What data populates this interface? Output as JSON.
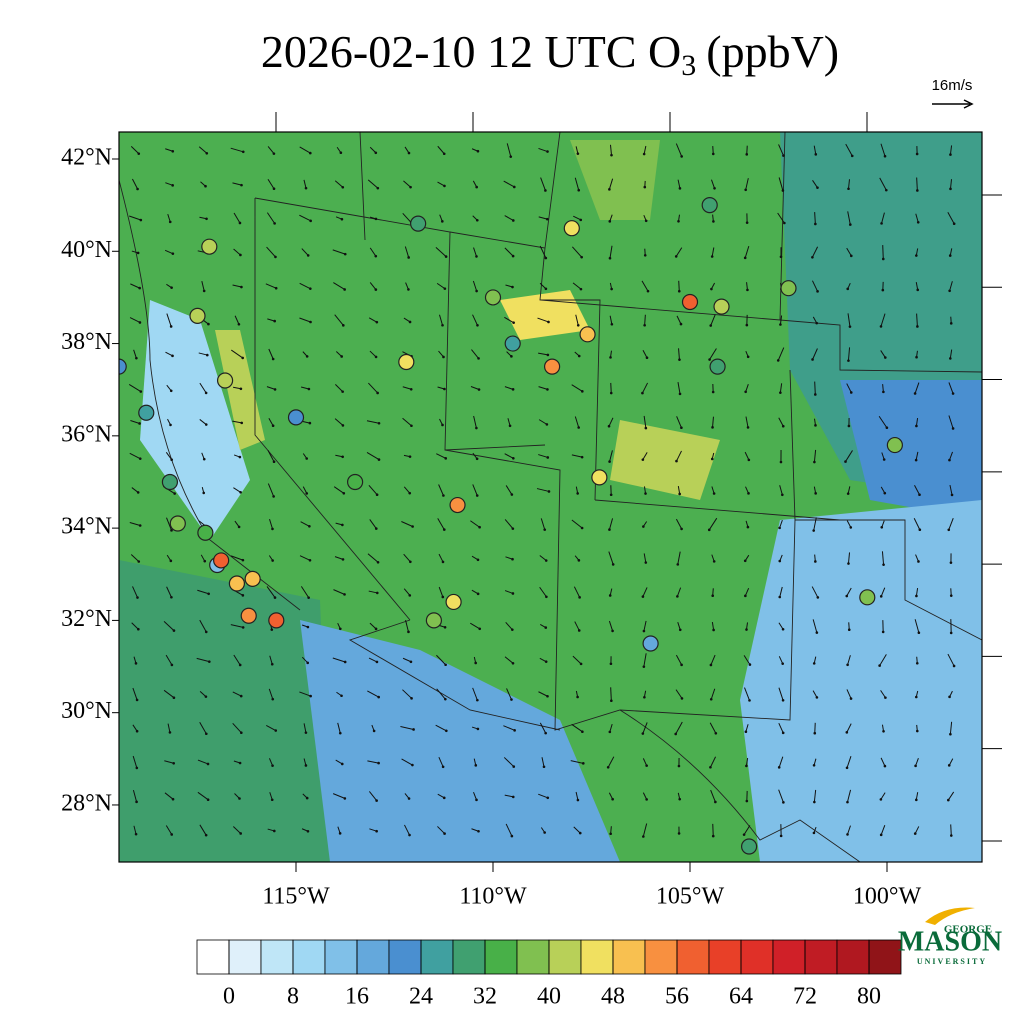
{
  "title": {
    "main": "2026-02-10 12 UTC O",
    "sub": "3",
    "unit": "(ppbV)"
  },
  "wind_reference": "16m/s",
  "lat_ticks": [
    {
      "value": 42,
      "label": "42°N"
    },
    {
      "value": 40,
      "label": "40°N"
    },
    {
      "value": 38,
      "label": "38°N"
    },
    {
      "value": 36,
      "label": "36°N"
    },
    {
      "value": 34,
      "label": "34°N"
    },
    {
      "value": 32,
      "label": "32°N"
    },
    {
      "value": 30,
      "label": "30°N"
    },
    {
      "value": 28,
      "label": "28°N"
    }
  ],
  "lon_ticks": [
    {
      "value": -115,
      "label": "115°W"
    },
    {
      "value": -110,
      "label": "110°W"
    },
    {
      "value": -105,
      "label": "105°W"
    },
    {
      "value": -100,
      "label": "100°W"
    }
  ],
  "colorbar": {
    "ticks": [
      0,
      8,
      16,
      24,
      32,
      40,
      48,
      56,
      64,
      72,
      80
    ],
    "step": 4,
    "min": -4,
    "max": 84,
    "colors": [
      "#ffffff",
      "#dff0fa",
      "#bfe6f7",
      "#a0d8f3",
      "#80c0e8",
      "#64a8dc",
      "#4a8fd0",
      "#40a0a0",
      "#40a070",
      "#48b048",
      "#80c050",
      "#b8d058",
      "#f0e060",
      "#f8c050",
      "#f89040",
      "#f06030",
      "#e84028",
      "#e03028",
      "#d02028",
      "#c01c24",
      "#b01820",
      "#901418"
    ]
  },
  "stations": [
    {
      "lon": -119.5,
      "lat": 37.5,
      "value": 22
    },
    {
      "lon": -118.8,
      "lat": 36.5,
      "value": 24
    },
    {
      "lon": -118.2,
      "lat": 35,
      "value": 30
    },
    {
      "lon": -118,
      "lat": 34.1,
      "value": 36
    },
    {
      "lon": -117.3,
      "lat": 33.9,
      "value": 34
    },
    {
      "lon": -117,
      "lat": 33.2,
      "value": 12
    },
    {
      "lon": -116.5,
      "lat": 32.8,
      "value": 48
    },
    {
      "lon": -116.1,
      "lat": 32.9,
      "value": 50
    },
    {
      "lon": -115.5,
      "lat": 32,
      "value": 56
    },
    {
      "lon": -116.2,
      "lat": 32.1,
      "value": 52
    },
    {
      "lon": -116.9,
      "lat": 33.3,
      "value": 58
    },
    {
      "lon": -117.5,
      "lat": 38.6,
      "value": 40
    },
    {
      "lon": -117.2,
      "lat": 40.1,
      "value": 40
    },
    {
      "lon": -116.8,
      "lat": 37.2,
      "value": 40
    },
    {
      "lon": -112.2,
      "lat": 37.6,
      "value": 46
    },
    {
      "lon": -110.9,
      "lat": 34.5,
      "value": 52
    },
    {
      "lon": -111,
      "lat": 32.4,
      "value": 46
    },
    {
      "lon": -111.5,
      "lat": 32,
      "value": 36
    },
    {
      "lon": -108.5,
      "lat": 37.5,
      "value": 52
    },
    {
      "lon": -107.6,
      "lat": 38.2,
      "value": 48
    },
    {
      "lon": -107.3,
      "lat": 35.1,
      "value": 46
    },
    {
      "lon": -105,
      "lat": 38.9,
      "value": 58
    },
    {
      "lon": -104.2,
      "lat": 38.8,
      "value": 42
    },
    {
      "lon": -104.3,
      "lat": 37.5,
      "value": 30
    },
    {
      "lon": -104.5,
      "lat": 41,
      "value": 28
    },
    {
      "lon": -102.5,
      "lat": 39.2,
      "value": 36
    },
    {
      "lon": -99.8,
      "lat": 35.8,
      "value": 36
    },
    {
      "lon": -100.5,
      "lat": 32.5,
      "value": 36
    },
    {
      "lon": -106,
      "lat": 31.5,
      "value": 16
    },
    {
      "lon": -103.5,
      "lat": 27.1,
      "value": 28
    },
    {
      "lon": -109.5,
      "lat": 38,
      "value": 24
    },
    {
      "lon": -110,
      "lat": 39,
      "value": 36
    },
    {
      "lon": -111.9,
      "lat": 40.6,
      "value": 28
    },
    {
      "lon": -113.5,
      "lat": 35,
      "value": 34
    },
    {
      "lon": -115,
      "lat": 36.4,
      "value": 22
    },
    {
      "lon": -108,
      "lat": 40.5,
      "value": 44
    }
  ],
  "logo": {
    "top": "GEORGE",
    "name": "MASON",
    "bottom": "UNIVERSITY"
  }
}
